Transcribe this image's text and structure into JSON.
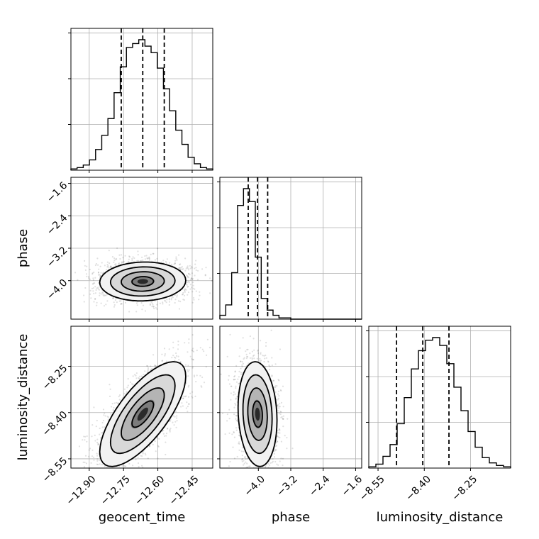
{
  "chart_data": {
    "type": "corner",
    "parameters": [
      "geocent_time",
      "phase",
      "luminosity_distance"
    ],
    "axis_labels": {
      "geocent_time": "geocent_time",
      "phase": "phase",
      "luminosity_distance": "luminosity_distance"
    },
    "ranges": {
      "geocent_time": [
        -12.98,
        -12.36
      ],
      "phase": [
        -4.95,
        -1.45
      ],
      "luminosity_distance": [
        -8.58,
        -8.12
      ]
    },
    "ticks": {
      "geocent_time": [
        -12.9,
        -12.75,
        -12.6,
        -12.45
      ],
      "phase": [
        -4.0,
        -3.2,
        -2.4,
        -1.6
      ],
      "luminosity_distance": [
        -8.55,
        -8.4,
        -8.25
      ]
    },
    "tick_labels": {
      "geocent_time": [
        "−12.90",
        "−12.75",
        "−12.60",
        "−12.45"
      ],
      "phase": [
        "−4.0",
        "−3.2",
        "−2.4",
        "−1.6"
      ],
      "luminosity_distance": [
        "−8.55",
        "−8.40",
        "−8.25"
      ]
    },
    "quantiles": {
      "geocent_time": [
        -12.76,
        -12.666,
        -12.572
      ],
      "phase": [
        -4.25,
        -4.02,
        -3.77
      ],
      "luminosity_distance": [
        -8.49,
        -8.405,
        -8.32
      ]
    },
    "histograms": {
      "geocent_time": [
        1,
        2,
        4,
        8,
        16,
        27,
        40,
        60,
        80,
        95,
        98,
        101,
        96,
        91,
        79,
        63,
        46,
        31,
        20,
        10,
        5,
        2,
        1
      ],
      "phase": [
        3,
        11,
        36,
        88,
        101,
        91,
        48,
        16,
        7,
        3,
        1,
        1,
        0,
        0,
        0,
        0,
        0,
        0,
        0,
        0,
        0,
        0,
        0,
        0
      ],
      "luminosity_distance": [
        1,
        3,
        9,
        18,
        34,
        54,
        76,
        90,
        98,
        100,
        94,
        80,
        62,
        44,
        28,
        16,
        8,
        4,
        2,
        1
      ]
    },
    "correlations": {
      "phase_vs_geocent_time": 0.05,
      "luminosity_distance_vs_geocent_time": 0.72,
      "luminosity_distance_vs_phase": -0.12
    },
    "grid": true,
    "line_color": "#000000",
    "quantile_line_style": "dashed"
  }
}
